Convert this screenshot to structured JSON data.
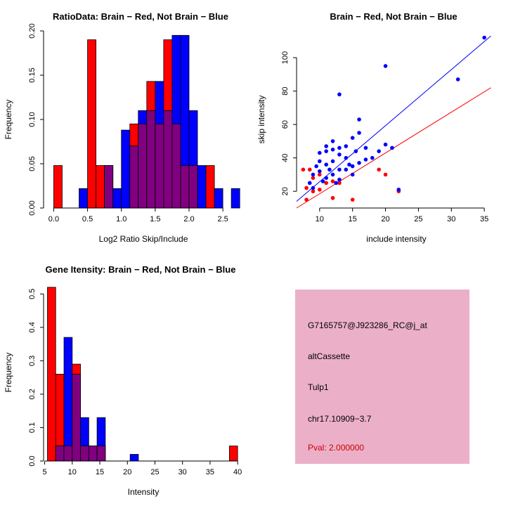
{
  "chart_data": [
    {
      "type": "histogram",
      "title": "RatioData: Brain − Red, Not Brain − Blue",
      "xlabel": "Log2 Ratio Skip/Include",
      "ylabel": "Frequency",
      "xdomain": [
        -0.15,
        2.8
      ],
      "ydomain": [
        0,
        0.2
      ],
      "xticks": {
        "values": [
          0,
          0.5,
          1,
          1.5,
          2,
          2.5
        ],
        "labels": [
          "0.0",
          "0.5",
          "1.0",
          "1.5",
          "2.0",
          "2.5"
        ]
      },
      "yticks": {
        "values": [
          0,
          0.05,
          0.1,
          0.15,
          0.2
        ],
        "labels": [
          "0.00",
          "0.05",
          "0.10",
          "0.15",
          "0.20"
        ]
      },
      "bin_width": 0.125,
      "overlap_color": "#800080",
      "grid": false,
      "series": [
        {
          "name": "Brain",
          "color": "#FF0000",
          "bins": [
            [
              0.0,
              0.048
            ],
            [
              0.5,
              0.19
            ],
            [
              0.625,
              0.048
            ],
            [
              0.75,
              0.048
            ],
            [
              1.125,
              0.095
            ],
            [
              1.25,
              0.095
            ],
            [
              1.375,
              0.143
            ],
            [
              1.5,
              0.095
            ],
            [
              1.625,
              0.19
            ],
            [
              1.75,
              0.095
            ],
            [
              1.875,
              0.048
            ],
            [
              2.0,
              0.048
            ],
            [
              2.25,
              0.048
            ]
          ]
        },
        {
          "name": "Not Brain",
          "color": "#0000FF",
          "bins": [
            [
              0.375,
              0.022
            ],
            [
              0.75,
              0.048
            ],
            [
              0.875,
              0.022
            ],
            [
              1.0,
              0.088
            ],
            [
              1.125,
              0.07
            ],
            [
              1.25,
              0.11
            ],
            [
              1.375,
              0.11
            ],
            [
              1.5,
              0.143
            ],
            [
              1.625,
              0.11
            ],
            [
              1.75,
              0.195
            ],
            [
              1.875,
              0.195
            ],
            [
              2.0,
              0.11
            ],
            [
              2.125,
              0.048
            ],
            [
              2.375,
              0.022
            ],
            [
              2.625,
              0.022
            ]
          ]
        }
      ]
    },
    {
      "type": "scatter",
      "title": "Brain − Red, Not Brain − Blue",
      "xlabel": "include intensity",
      "ylabel": "skip intensity",
      "xdomain": [
        6.5,
        36.8
      ],
      "ydomain": [
        10,
        116
      ],
      "xticks": {
        "values": [
          10,
          15,
          20,
          25,
          30,
          35
        ],
        "labels": [
          "10",
          "15",
          "20",
          "25",
          "30",
          "35"
        ]
      },
      "yticks": {
        "values": [
          20,
          40,
          60,
          80,
          100
        ],
        "labels": [
          "20",
          "40",
          "60",
          "80",
          "100"
        ]
      },
      "grid": false,
      "series": [
        {
          "name": "Brain",
          "color": "#FF0000",
          "points": [
            [
              7.5,
              33
            ],
            [
              8,
              22
            ],
            [
              8,
              15
            ],
            [
              8.5,
              33
            ],
            [
              9,
              28
            ],
            [
              9,
              20
            ],
            [
              10,
              30
            ],
            [
              10,
              21
            ],
            [
              11,
              25
            ],
            [
              12,
              26
            ],
            [
              12,
              16
            ],
            [
              13,
              25
            ],
            [
              15,
              15
            ],
            [
              19,
              33
            ],
            [
              20,
              30
            ],
            [
              22,
              20
            ]
          ]
        },
        {
          "name": "Not Brain",
          "color": "#0000FF",
          "points": [
            [
              8.5,
              25
            ],
            [
              9,
              22
            ],
            [
              9,
              30
            ],
            [
              9.5,
              35
            ],
            [
              10,
              43
            ],
            [
              10,
              32
            ],
            [
              10,
              38
            ],
            [
              10.5,
              26
            ],
            [
              11,
              44
            ],
            [
              11,
              36
            ],
            [
              11,
              28
            ],
            [
              11,
              47
            ],
            [
              11.5,
              33
            ],
            [
              12,
              45
            ],
            [
              12,
              38
            ],
            [
              12,
              30
            ],
            [
              12,
              50
            ],
            [
              12.5,
              25
            ],
            [
              13,
              78
            ],
            [
              13,
              42
            ],
            [
              13,
              33
            ],
            [
              13,
              27
            ],
            [
              13,
              46
            ],
            [
              14,
              47
            ],
            [
              14,
              40
            ],
            [
              14,
              33
            ],
            [
              14.5,
              36
            ],
            [
              15,
              52
            ],
            [
              15,
              35
            ],
            [
              15,
              30
            ],
            [
              15.5,
              44
            ],
            [
              16,
              63
            ],
            [
              16,
              37
            ],
            [
              16,
              55
            ],
            [
              17,
              46
            ],
            [
              17,
              39
            ],
            [
              18,
              40
            ],
            [
              19,
              44
            ],
            [
              20,
              95
            ],
            [
              20,
              48
            ],
            [
              21,
              46
            ],
            [
              22,
              21
            ],
            [
              31,
              87
            ],
            [
              35,
              112
            ]
          ]
        }
      ],
      "lines": [
        {
          "name": "brain-fit",
          "color": "#FF0000",
          "x": [
            6.5,
            36
          ],
          "y": [
            10,
            82
          ]
        },
        {
          "name": "not-brain-fit",
          "color": "#0000FF",
          "x": [
            6.5,
            36
          ],
          "y": [
            14,
            113
          ]
        }
      ]
    },
    {
      "type": "histogram",
      "title": "Gene Itensity: Brain − Red, Not Brain − Blue",
      "xlabel": "Intensity",
      "ylabel": "Frequency",
      "xdomain": [
        4.8,
        41
      ],
      "ydomain": [
        0,
        0.53
      ],
      "xticks": {
        "values": [
          5,
          10,
          15,
          20,
          25,
          30,
          35,
          40
        ],
        "labels": [
          "5",
          "10",
          "15",
          "20",
          "25",
          "30",
          "35",
          "40"
        ]
      },
      "yticks": {
        "values": [
          0,
          0.1,
          0.2,
          0.3,
          0.4,
          0.5
        ],
        "labels": [
          "0.0",
          "0.1",
          "0.2",
          "0.3",
          "0.4",
          "0.5"
        ]
      },
      "bin_width": 1.5,
      "overlap_color": "#800080",
      "grid": false,
      "series": [
        {
          "name": "Brain",
          "color": "#FF0000",
          "bins": [
            [
              5.5,
              0.52
            ],
            [
              7,
              0.26
            ],
            [
              8.5,
              0.045
            ],
            [
              10,
              0.29
            ],
            [
              11.5,
              0.045
            ],
            [
              13,
              0.045
            ],
            [
              14.5,
              0.045
            ],
            [
              38.5,
              0.045
            ]
          ]
        },
        {
          "name": "Not Brain",
          "color": "#0000FF",
          "bins": [
            [
              7,
              0.045
            ],
            [
              8.5,
              0.37
            ],
            [
              10,
              0.26
            ],
            [
              11.5,
              0.13
            ],
            [
              13,
              0.045
            ],
            [
              14.5,
              0.13
            ],
            [
              20.5,
              0.02
            ]
          ]
        }
      ]
    }
  ],
  "info_panel": {
    "probe_id": "G7165757@J923286_RC@j_at",
    "event_type": "altCassette",
    "gene": "Tulp1",
    "location": "chr17.10909−3.7",
    "pval": "Pval: 2.000000",
    "box_color": "#EBB0C8",
    "pval_color": "#CC0000"
  }
}
